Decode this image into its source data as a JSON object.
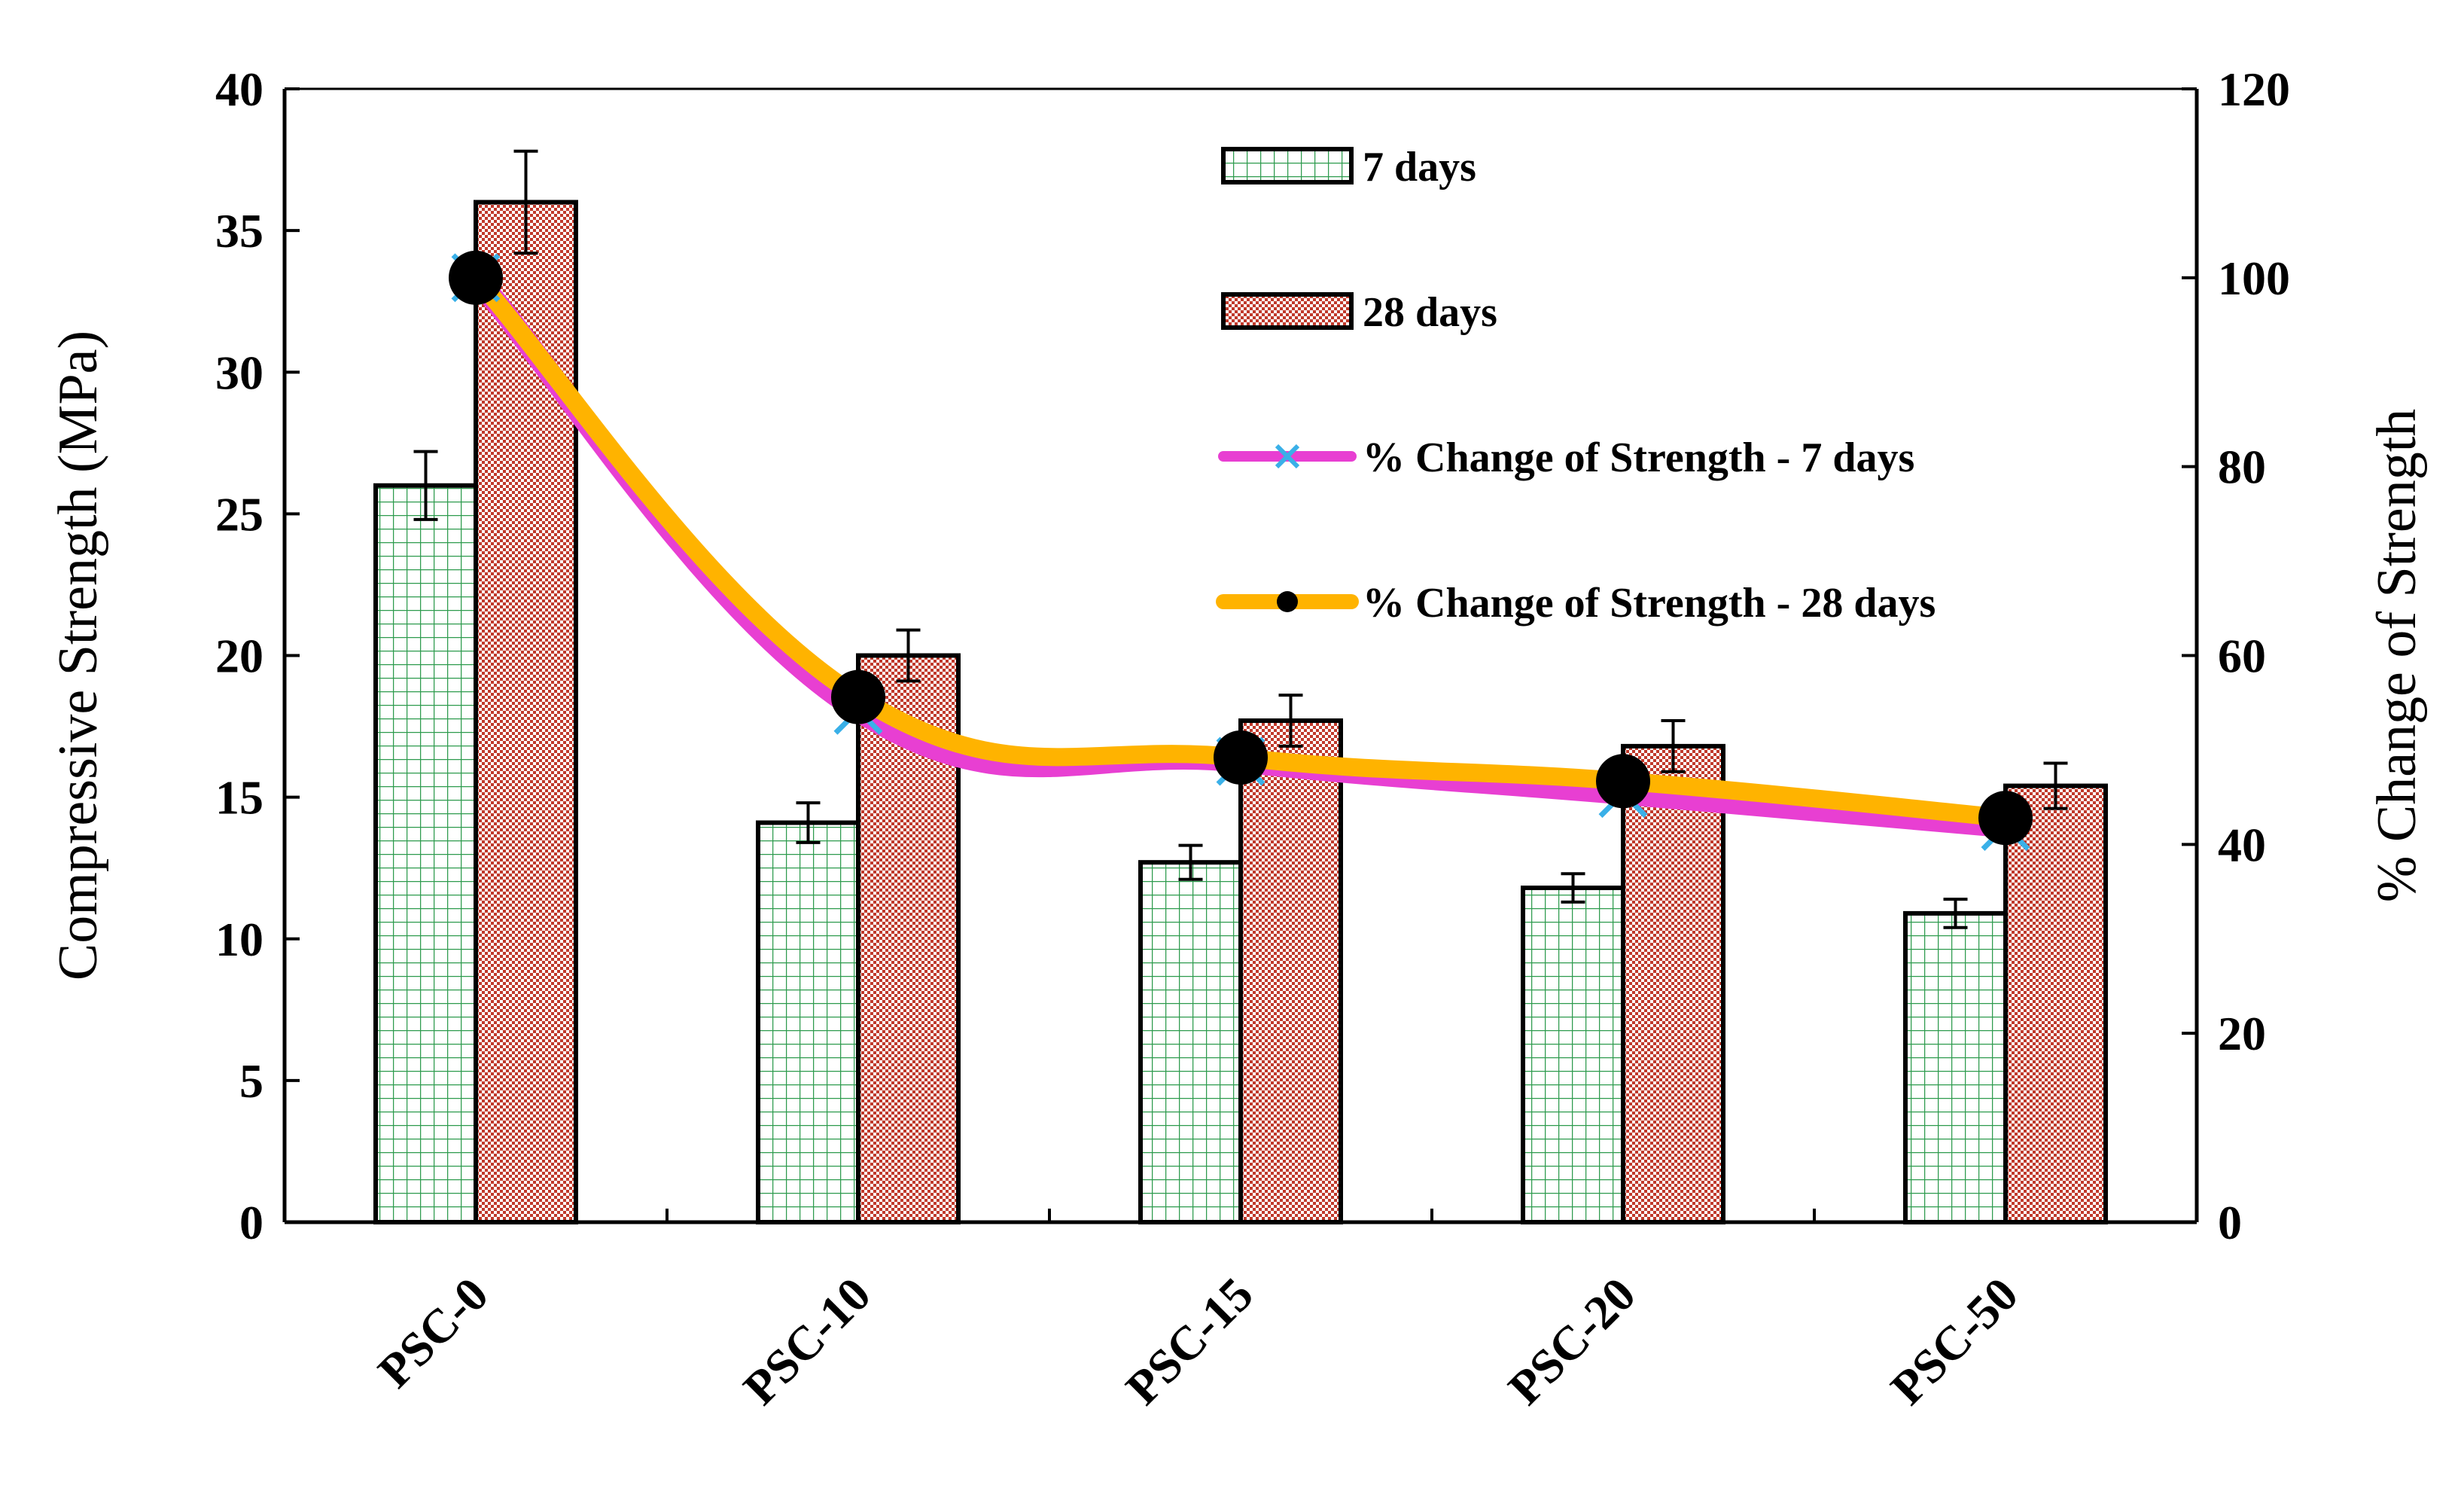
{
  "chart_data": {
    "type": "bar",
    "categories": [
      "PSC-0",
      "PSC-10",
      "PSC-15",
      "PSC-20",
      "PSC-50"
    ],
    "series": [
      {
        "name": "7 days",
        "type": "bar",
        "axis": "left",
        "values": [
          26.0,
          14.1,
          12.7,
          11.8,
          10.9
        ],
        "errors": [
          1.2,
          0.7,
          0.6,
          0.5,
          0.5
        ],
        "fill": "#2e9b4e",
        "pattern": "grid"
      },
      {
        "name": "28 days",
        "type": "bar",
        "axis": "left",
        "values": [
          36.0,
          20.0,
          17.7,
          16.8,
          15.4
        ],
        "errors": [
          1.8,
          0.9,
          0.9,
          0.9,
          0.8
        ],
        "fill": "#c0392b",
        "pattern": "dots"
      },
      {
        "name": "% Change of Strength - 7 days",
        "type": "line",
        "axis": "right",
        "values": [
          100,
          54.2,
          48.8,
          45.4,
          41.9
        ],
        "color": "#e83fd2",
        "marker": "x",
        "marker_color": "#3ab0e8"
      },
      {
        "name": "% Change of Strength - 28 days",
        "type": "line",
        "axis": "right",
        "values": [
          100,
          55.6,
          49.2,
          46.7,
          42.8
        ],
        "color": "#ffb300",
        "marker": "circle",
        "marker_color": "#000000"
      }
    ],
    "ylabel": "Compressive Strength (MPa)",
    "y2label": "% Change of Strength",
    "ylim": [
      0,
      40
    ],
    "y2lim": [
      0,
      120
    ],
    "yticks": [
      "0",
      "5",
      "10",
      "15",
      "20",
      "25",
      "30",
      "35",
      "40"
    ],
    "y2ticks": [
      "0",
      "20",
      "40",
      "60",
      "80",
      "100",
      "120"
    ],
    "grid": false,
    "legend_position": "top-center"
  }
}
